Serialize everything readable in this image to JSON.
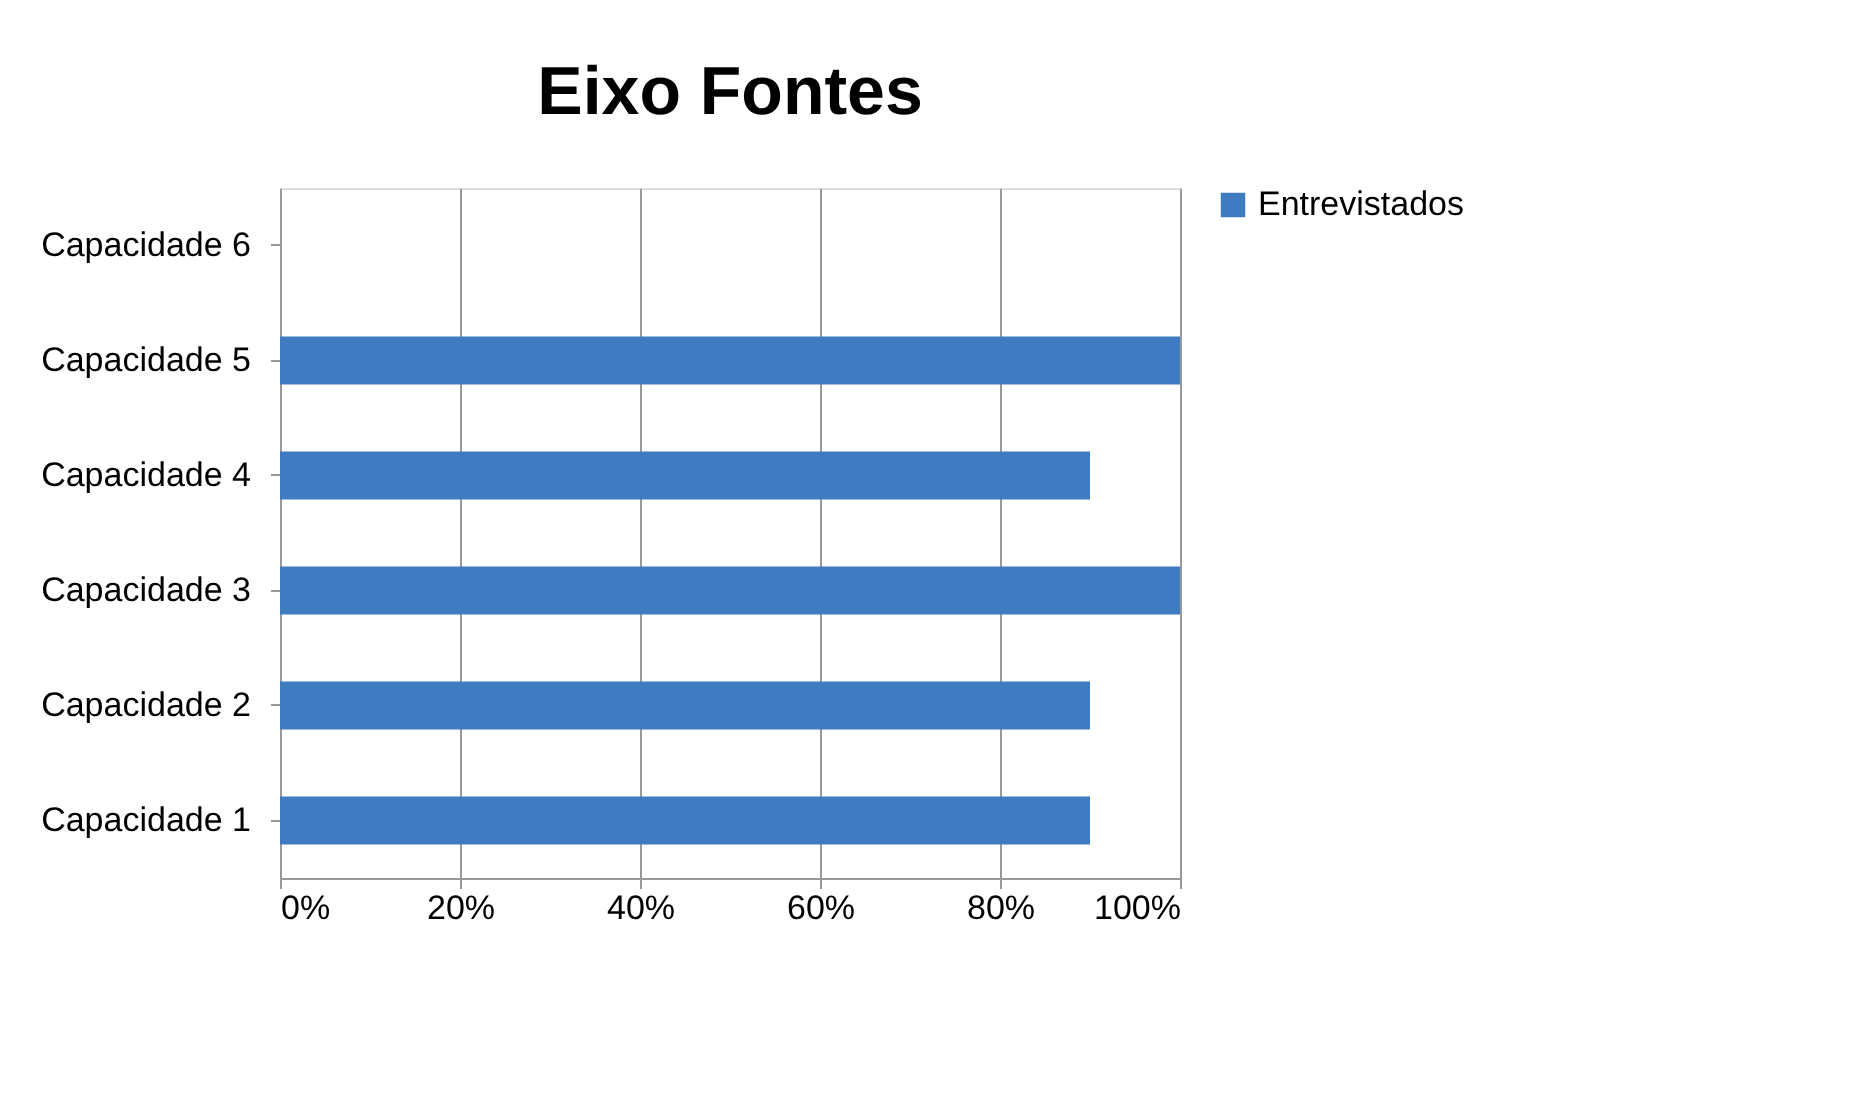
{
  "chart_data": {
    "type": "bar",
    "orientation": "horizontal",
    "title": "Eixo Fontes",
    "categories": [
      "Capacidade 6",
      "Capacidade 5",
      "Capacidade 4",
      "Capacidade 3",
      "Capacidade 2",
      "Capacidade 1"
    ],
    "series": [
      {
        "name": "Entrevistados",
        "color": "#3f7bc0",
        "values": [
          0,
          100,
          90,
          100,
          90,
          90
        ]
      }
    ],
    "xlim": [
      0,
      100
    ],
    "xticks": [
      {
        "value": 0,
        "label": "0%"
      },
      {
        "value": 20,
        "label": "20%"
      },
      {
        "value": 40,
        "label": "40%"
      },
      {
        "value": 60,
        "label": "60%"
      },
      {
        "value": 80,
        "label": "80%"
      },
      {
        "value": 100,
        "label": "100%"
      }
    ],
    "grid": "x",
    "legend": "right"
  }
}
